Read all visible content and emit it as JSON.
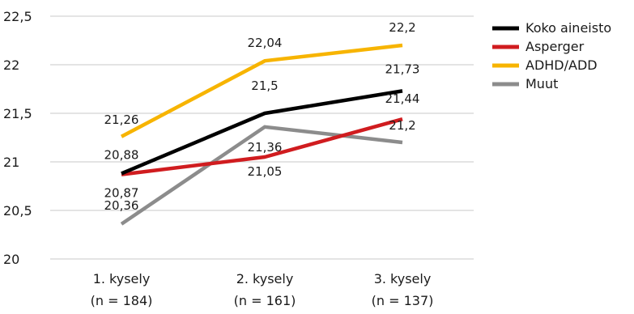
{
  "chart_data": {
    "type": "line",
    "categories": [
      "1. kysely",
      "2. kysely",
      "3. kysely"
    ],
    "category_sublabels": [
      "(n = 184)",
      "(n = 161)",
      "(n = 137)"
    ],
    "ylim": [
      20,
      22.5
    ],
    "yticks": [
      20,
      20.5,
      21,
      21.5,
      22,
      22.5
    ],
    "ytick_labels": [
      "20",
      "20,5",
      "21",
      "21,5",
      "22",
      "22,5"
    ],
    "grid": true,
    "legend_position": "top-right",
    "series": [
      {
        "name": "Koko aineisto",
        "color": "#000000",
        "values": [
          20.88,
          21.5,
          21.73
        ],
        "labels": [
          "20,88",
          "21,5",
          "21,73"
        ]
      },
      {
        "name": "Asperger",
        "color": "#d01c1f",
        "values": [
          20.87,
          21.05,
          21.44
        ],
        "labels": [
          "20,87",
          "21,05",
          "21,44"
        ]
      },
      {
        "name": "ADHD/ADD",
        "color": "#f7b400",
        "values": [
          21.26,
          22.04,
          22.2
        ],
        "labels": [
          "21,26",
          "22,04",
          "22,2"
        ]
      },
      {
        "name": "Muut",
        "color": "#8c8c8c",
        "values": [
          20.36,
          21.36,
          21.2
        ],
        "labels": [
          "20,36",
          "21,36",
          "21,2"
        ]
      }
    ]
  }
}
